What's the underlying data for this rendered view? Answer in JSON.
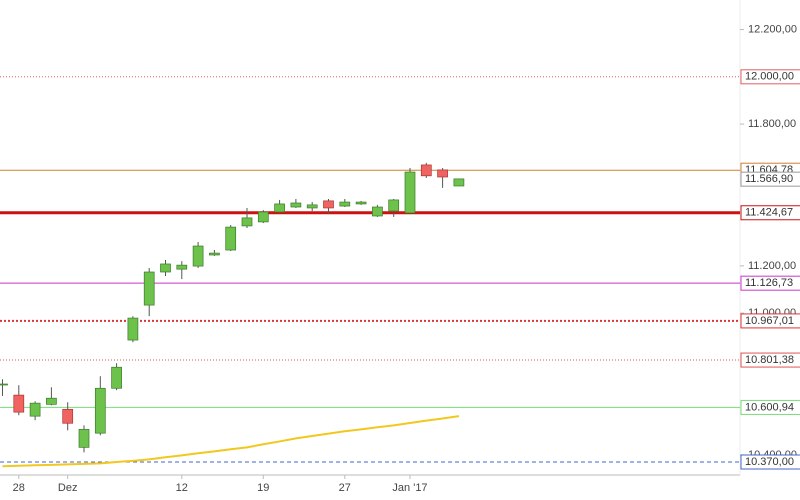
{
  "chart_data": {
    "type": "candlestick",
    "categories": [
      null,
      "28",
      null,
      null,
      "Dez",
      null,
      null,
      null,
      null,
      null,
      null,
      "12",
      null,
      null,
      null,
      null,
      "19",
      null,
      null,
      null,
      null,
      "27",
      null,
      null,
      null,
      "Jan '17",
      null,
      null,
      null
    ],
    "open": [
      10700,
      10653,
      10564,
      10614,
      10593,
      10432,
      10492,
      10682,
      10886,
      11034,
      11174,
      11186,
      11199,
      11246,
      11267,
      11369,
      11386,
      11428,
      11449,
      11445,
      11475,
      11453,
      11462,
      11411,
      11432,
      11424,
      11627,
      11606,
      11538
    ],
    "high": [
      10720,
      10695,
      10627,
      10686,
      10623,
      10525,
      10733,
      10788,
      10987,
      11191,
      11225,
      11220,
      11301,
      11267,
      11373,
      11445,
      11436,
      11479,
      11483,
      11470,
      11483,
      11483,
      11475,
      11458,
      11483,
      11614,
      11636,
      11614,
      11568
    ],
    "low": [
      10650,
      10568,
      10547,
      10610,
      10504,
      10411,
      10483,
      10674,
      10877,
      10987,
      11157,
      11144,
      11191,
      11242,
      11263,
      11360,
      11381,
      11424,
      11445,
      11432,
      11419,
      11449,
      11458,
      11407,
      11407,
      11419,
      11572,
      11530,
      11538
    ],
    "close": [
      10700,
      10581,
      10619,
      10640,
      10534,
      10508,
      10682,
      10771,
      10979,
      11174,
      11208,
      11203,
      11284,
      11254,
      11364,
      11403,
      11428,
      11462,
      11466,
      11458,
      11445,
      11470,
      11470,
      11449,
      11479,
      11597,
      11581,
      11576,
      11568
    ],
    "up_color": "#6cc24a",
    "down_color": "#ef6461",
    "moving_average": {
      "color": "#f2c81e",
      "values": [
        10352,
        10354,
        10356,
        10358,
        10360,
        10362,
        10364,
        10370,
        10375,
        10381,
        10390,
        10398,
        10407,
        10415,
        10424,
        10432,
        10445,
        10457,
        10470,
        10480,
        10490,
        10500,
        10508,
        10517,
        10525,
        10535,
        10545,
        10554,
        10564
      ]
    },
    "levels": [
      {
        "value": 12000,
        "label": "12.000,00",
        "color": "#e06060",
        "style": "dotted"
      },
      {
        "value": 11604.78,
        "label": "11.604,78",
        "color": "#d08030",
        "style": "solid"
      },
      {
        "value": 11566.9,
        "label": "11.566,90",
        "color": "#999999",
        "style": "none"
      },
      {
        "value": 11424.67,
        "label": "11.424,67",
        "color": "#cc1111",
        "style": "thick"
      },
      {
        "value": 11126.73,
        "label": "11.126,73",
        "color": "#cc33cc",
        "style": "solid"
      },
      {
        "value": 10967.01,
        "label": "10.967,01",
        "color": "#dd3333",
        "style": "dotted-thick"
      },
      {
        "value": 10801.38,
        "label": "10.801,38",
        "color": "#dd5555",
        "style": "dotted"
      },
      {
        "value": 10600.94,
        "label": "10.600,94",
        "color": "#77dd77",
        "style": "solid"
      },
      {
        "value": 10370,
        "label": "10.370,00",
        "color": "#4466cc",
        "style": "dashed"
      }
    ],
    "ylim": [
      10315,
      12325
    ],
    "yticks": [
      {
        "value": 10400,
        "label": "10.400,00"
      },
      {
        "value": 11000,
        "label": "11.000,00"
      },
      {
        "value": 11200,
        "label": "11.200,00"
      },
      {
        "value": 11800,
        "label": "11.800,00"
      },
      {
        "value": 12200,
        "label": "12.200,00"
      }
    ]
  }
}
